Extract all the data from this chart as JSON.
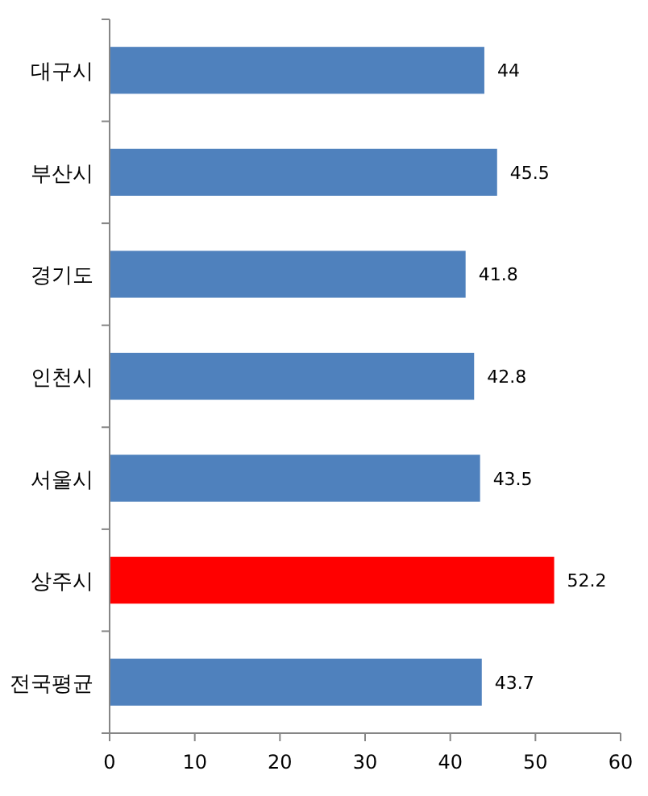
{
  "chart_data": {
    "type": "bar",
    "orientation": "horizontal",
    "categories": [
      "대구시",
      "부산시",
      "경기도",
      "인천시",
      "서울시",
      "상주시",
      "전국평균"
    ],
    "values": [
      44,
      45.5,
      41.8,
      42.8,
      43.5,
      52.2,
      43.7
    ],
    "colors": [
      "#4f81bd",
      "#4f81bd",
      "#4f81bd",
      "#4f81bd",
      "#4f81bd",
      "#ff0000",
      "#4f81bd"
    ],
    "xlim": [
      0,
      60
    ],
    "xticks": [
      0,
      10,
      20,
      30,
      40,
      50,
      60
    ],
    "data_labels": true,
    "grid": false
  }
}
